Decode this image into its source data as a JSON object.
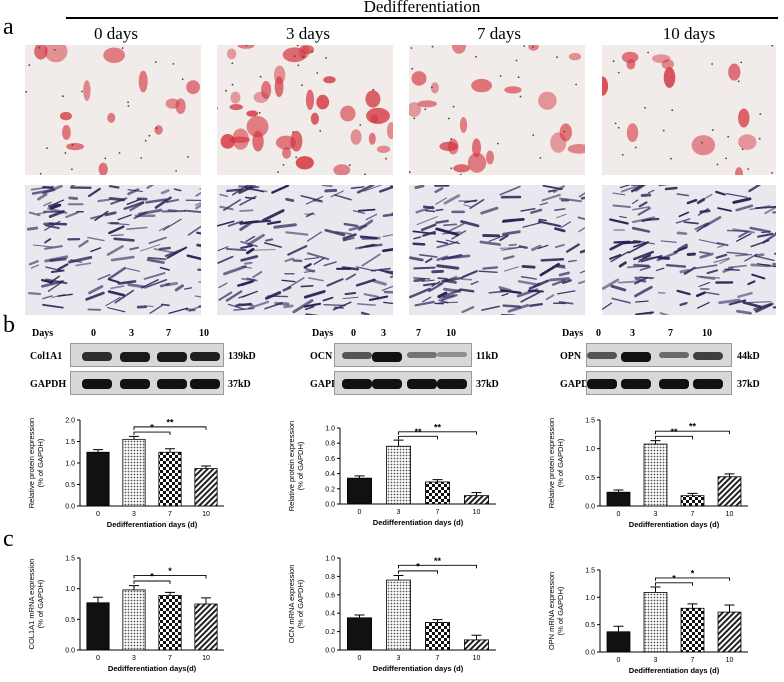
{
  "header": {
    "title": "Dedifferentiation"
  },
  "panel_letters": {
    "a": "a",
    "b": "b",
    "c": "c"
  },
  "days_labels": [
    "0 days",
    "3 days",
    "7 days",
    "10 days"
  ],
  "blots": [
    {
      "days_label": "Days",
      "lanes": [
        "0",
        "3",
        "7",
        "10"
      ],
      "protein": "Col1A1",
      "protein_kd": "139kD",
      "control": "GAPDH",
      "control_kd": "37kD"
    },
    {
      "days_label": "Days",
      "lanes": [
        "0",
        "3",
        "7",
        "10"
      ],
      "protein": "OCN",
      "protein_kd": "11kD",
      "control": "GAPDH",
      "control_kd": "37kD"
    },
    {
      "days_label": "Days",
      "lanes": [
        "0",
        "3",
        "7",
        "10"
      ],
      "protein": "OPN",
      "protein_kd": "44kD",
      "control": "GAPDH",
      "control_kd": "37kD"
    }
  ],
  "colors": {
    "stain_red": "#d4343f",
    "stain_purple": "#2a2456",
    "band": "#111111"
  },
  "chart_data": [
    {
      "type": "bar",
      "id": "b1",
      "categories": [
        "0",
        "3",
        "7",
        "10"
      ],
      "values": [
        1.25,
        1.55,
        1.25,
        0.87
      ],
      "errors": [
        0.06,
        0.07,
        0.08,
        0.06
      ],
      "ylabel": "Relative protein expression\n(% of GAPDH)",
      "xlabel": "Dedifferentiation days (d)",
      "ylim": [
        0,
        2.0
      ],
      "yticks": [
        "0.0",
        "0.5",
        "1.0",
        "1.5",
        "2.0"
      ],
      "significance": [
        {
          "from": "3",
          "to": "7",
          "label": "*"
        },
        {
          "from": "3",
          "to": "10",
          "label": "**"
        }
      ]
    },
    {
      "type": "bar",
      "id": "b2",
      "categories": [
        "0",
        "3",
        "7",
        "10"
      ],
      "values": [
        0.34,
        0.76,
        0.29,
        0.11
      ],
      "errors": [
        0.03,
        0.08,
        0.03,
        0.04
      ],
      "ylabel": "Relative protein expression\n(% of GAPDH)",
      "xlabel": "Dedifferentiation days (d)",
      "ylim": [
        0,
        1.0
      ],
      "yticks": [
        "0.0",
        "0.2",
        "0.4",
        "0.6",
        "0.8",
        "1.0"
      ],
      "significance": [
        {
          "from": "3",
          "to": "7",
          "label": "**"
        },
        {
          "from": "3",
          "to": "10",
          "label": "**"
        }
      ]
    },
    {
      "type": "bar",
      "id": "b3",
      "categories": [
        "0",
        "3",
        "7",
        "10"
      ],
      "values": [
        0.24,
        1.08,
        0.18,
        0.51
      ],
      "errors": [
        0.04,
        0.06,
        0.04,
        0.05
      ],
      "ylabel": "Relative protein expression\n(% of GAPDH)",
      "xlabel": "Dedifferentiation days (d)",
      "ylim": [
        0,
        1.5
      ],
      "yticks": [
        "0.0",
        "0.5",
        "1.0",
        "1.5"
      ],
      "significance": [
        {
          "from": "3",
          "to": "7",
          "label": "**"
        },
        {
          "from": "3",
          "to": "10",
          "label": "**"
        }
      ]
    },
    {
      "type": "bar",
      "id": "c1",
      "categories": [
        "0",
        "3",
        "7",
        "10"
      ],
      "values": [
        0.77,
        0.98,
        0.89,
        0.75
      ],
      "errors": [
        0.09,
        0.07,
        0.05,
        0.1
      ],
      "ylabel": "COL1A1 mRNA expression\n(% of GAPDH)",
      "xlabel": "Dedifferentiation days(d)",
      "ylim": [
        0,
        1.5
      ],
      "yticks": [
        "0.0",
        "0.5",
        "1.0",
        "1.5"
      ],
      "significance": [
        {
          "from": "3",
          "to": "7",
          "label": "*"
        },
        {
          "from": "3",
          "to": "10",
          "label": "*"
        }
      ]
    },
    {
      "type": "bar",
      "id": "c2",
      "categories": [
        "0",
        "3",
        "7",
        "10"
      ],
      "values": [
        0.35,
        0.76,
        0.3,
        0.11
      ],
      "errors": [
        0.03,
        0.05,
        0.03,
        0.05
      ],
      "ylabel": "OCN mRNA expression\n(% of GAPDH)",
      "xlabel": "Dedifferentiation days (d)",
      "ylim": [
        0,
        1.0
      ],
      "yticks": [
        "0.0",
        "0.2",
        "0.4",
        "0.6",
        "0.8",
        "1.0"
      ],
      "significance": [
        {
          "from": "3",
          "to": "7",
          "label": "*"
        },
        {
          "from": "3",
          "to": "10",
          "label": "**"
        }
      ]
    },
    {
      "type": "bar",
      "id": "c3",
      "categories": [
        "0",
        "3",
        "7",
        "10"
      ],
      "values": [
        0.37,
        1.09,
        0.8,
        0.73
      ],
      "errors": [
        0.1,
        0.1,
        0.08,
        0.13
      ],
      "ylabel": "OPN mRNA expression\n(% of GAPDH)",
      "xlabel": "Dedifferentiation days (d)",
      "ylim": [
        0,
        1.5
      ],
      "yticks": [
        "0.0",
        "0.5",
        "1.0",
        "1.5"
      ],
      "significance": [
        {
          "from": "3",
          "to": "7",
          "label": "*"
        },
        {
          "from": "3",
          "to": "10",
          "label": "*"
        }
      ]
    }
  ]
}
